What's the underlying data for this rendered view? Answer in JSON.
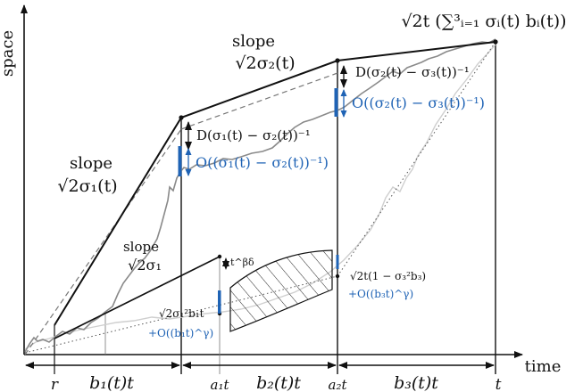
{
  "axes": {
    "x_label": "time",
    "y_label": "space"
  },
  "top_expression": "√2t (∑³ᵢ₌₁ σᵢ(t) bᵢ(t))",
  "labels": {
    "slope1_word": "slope",
    "slope1_expr": "√2σ₁(t)",
    "slope2_word": "slope",
    "slope2_expr": "√2σ₂(t)",
    "slope_small_word": "slope",
    "slope_small_expr": "√2σ₁",
    "t_beta_delta": "t^βδ",
    "gap1": "D(σ₁(t) − σ₂(t))⁻¹",
    "gap1_err": "O((σ₁(t) − σ₂(t))⁻¹)",
    "gap2": "D(σ₂(t) − σ₃(t))⁻¹",
    "gap2_err": "O((σ₂(t) − σ₃(t))⁻¹)",
    "pt1": "√2σ₁²b₁t",
    "pt1_err": "+O((b₁t)^γ)",
    "pt2": "√2t(1 − σ₃²b₃)",
    "pt2_err": "+O((b₃t)^γ)"
  },
  "ticks": {
    "r": "r",
    "a1t": "a₁t",
    "a2t": "a₂t",
    "t": "t"
  },
  "intervals": {
    "b1": "b₁(t)t",
    "b2": "b₂(t)t",
    "b3": "b₃(t)t"
  },
  "colors": {
    "blue": "#1f63b5",
    "black": "#111111",
    "grey_path": "#8a8a8a",
    "light_path": "#cfcfcf",
    "dash": "#777777"
  }
}
